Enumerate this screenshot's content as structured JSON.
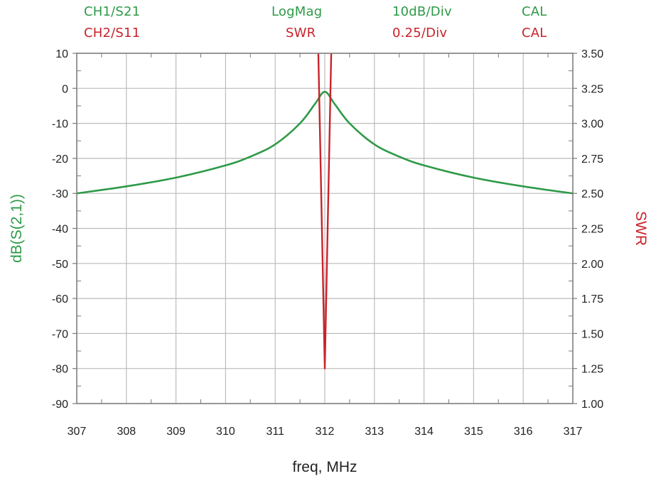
{
  "header": {
    "ch1": {
      "channel": "CH1/S21",
      "format": "LogMag",
      "scale": "10dB/Div",
      "status": "CAL",
      "color": "#2e9a47"
    },
    "ch2": {
      "channel": "CH2/S11",
      "format": "SWR",
      "scale": "0.25/Div",
      "status": "CAL",
      "color": "#c8232b"
    }
  },
  "chart_data": {
    "type": "line",
    "xlabel": "freq, MHz",
    "ylabel_left": "dB(S(2,1))",
    "ylabel_right": "SWR",
    "xlim": [
      307,
      317
    ],
    "ylim_left": [
      -90,
      10
    ],
    "ylim_right": [
      1.0,
      3.5
    ],
    "x_ticks": [
      "307",
      "308",
      "309",
      "310",
      "311",
      "312",
      "313",
      "314",
      "315",
      "316",
      "317"
    ],
    "y_left_ticks": [
      "10",
      "0",
      "-10",
      "-20",
      "-30",
      "-40",
      "-50",
      "-60",
      "-70",
      "-80",
      "-90"
    ],
    "y_right_ticks": [
      "3.50",
      "3.25",
      "3.00",
      "2.75",
      "2.50",
      "2.25",
      "2.00",
      "1.75",
      "1.50",
      "1.25",
      "1.00"
    ],
    "grid": true,
    "series": [
      {
        "name": "CH1/S21",
        "axis": "left",
        "color": "#2e9a47",
        "x": [
          307,
          308,
          309,
          310,
          310.5,
          311,
          311.5,
          311.8,
          312,
          312.2,
          312.5,
          313,
          313.5,
          314,
          315,
          316,
          317
        ],
        "y": [
          -30,
          -28,
          -25.5,
          -22,
          -19.5,
          -16,
          -10,
          -4.5,
          -1,
          -4.5,
          -10,
          -16,
          -19.5,
          -22,
          -25.5,
          -28,
          -30
        ]
      },
      {
        "name": "CH2/S11",
        "axis": "right",
        "color": "#c8232b",
        "x": [
          311.87,
          312,
          312.13
        ],
        "y": [
          3.5,
          1.25,
          3.5
        ]
      }
    ]
  }
}
